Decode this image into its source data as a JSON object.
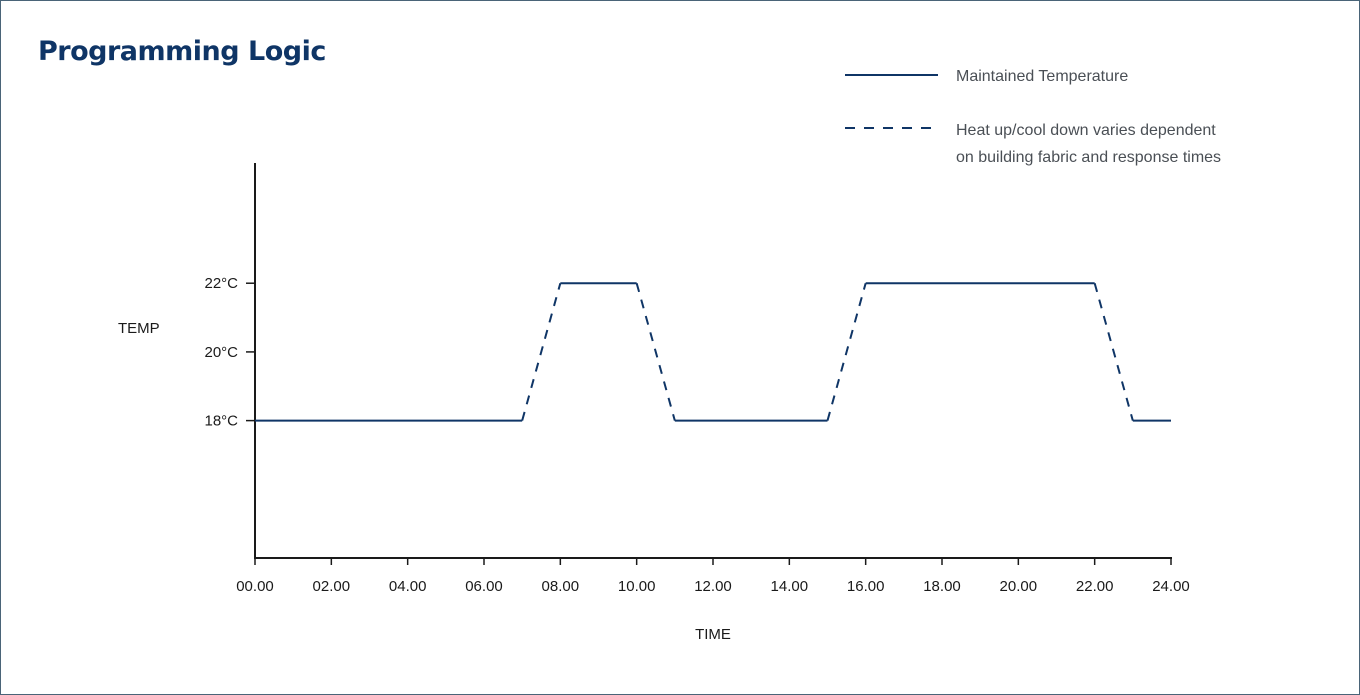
{
  "chart_data": {
    "type": "line",
    "title": "Programming Logic",
    "xlabel": "TIME",
    "ylabel": "TEMP",
    "x_ticks": [
      "00.00",
      "02.00",
      "04.00",
      "06.00",
      "08.00",
      "10.00",
      "12.00",
      "14.00",
      "16.00",
      "18.00",
      "20.00",
      "22.00",
      "24.00"
    ],
    "x_range": [
      0,
      24
    ],
    "y_ticks": [
      {
        "value": 18,
        "label": "18°C"
      },
      {
        "value": 20,
        "label": "20°C"
      },
      {
        "value": 22,
        "label": "22°C"
      }
    ],
    "y_range": [
      14,
      25.5
    ],
    "grid": false,
    "legend": {
      "placement": "top-right",
      "solid_label": "Maintained Temperature",
      "dashed_label_lines": [
        "Heat up/cool down varies dependent",
        "on building fabric and response times"
      ]
    },
    "series": [
      {
        "points": [
          {
            "x": 0,
            "y": 18
          },
          {
            "x": 7,
            "y": 18
          },
          {
            "x": 8,
            "y": 22
          },
          {
            "x": 10,
            "y": 22
          },
          {
            "x": 11,
            "y": 18
          },
          {
            "x": 15,
            "y": 18
          },
          {
            "x": 16,
            "y": 22
          },
          {
            "x": 22,
            "y": 22
          },
          {
            "x": 23,
            "y": 18
          },
          {
            "x": 24,
            "y": 18
          }
        ]
      }
    ],
    "colors": {
      "line": "#0f3566",
      "axis": "#1a1a1a",
      "title": "#0f3566"
    }
  }
}
